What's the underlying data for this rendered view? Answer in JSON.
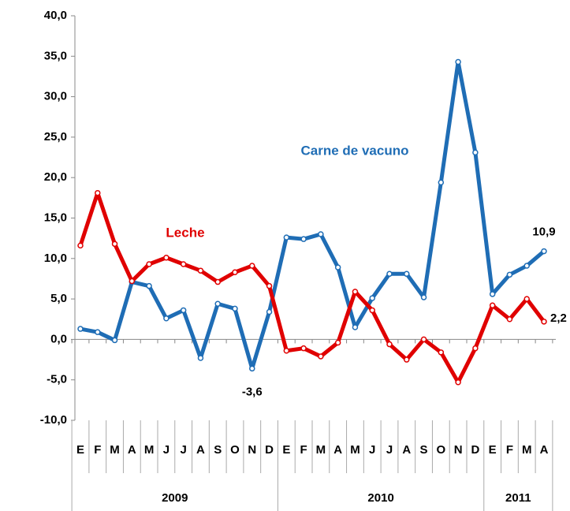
{
  "chart_data": {
    "type": "line",
    "categories": [
      "E",
      "F",
      "M",
      "A",
      "M",
      "J",
      "J",
      "A",
      "S",
      "O",
      "N",
      "D",
      "E",
      "F",
      "M",
      "A",
      "M",
      "J",
      "J",
      "A",
      "S",
      "O",
      "N",
      "D",
      "E",
      "F",
      "M",
      "A"
    ],
    "groups": [
      "2009",
      "2010",
      "2011"
    ],
    "ylim": [
      -10,
      40
    ],
    "yticks": [
      {
        "value": -10,
        "label": "-10,0"
      },
      {
        "value": -5,
        "label": "-5,0"
      },
      {
        "value": 0,
        "label": "0,0"
      },
      {
        "value": 5,
        "label": "5,0"
      },
      {
        "value": 10,
        "label": "10,0"
      },
      {
        "value": 15,
        "label": "15,0"
      },
      {
        "value": 20,
        "label": "20,0"
      },
      {
        "value": 25,
        "label": "25,0"
      },
      {
        "value": 30,
        "label": "30,0"
      },
      {
        "value": 35,
        "label": "35,0"
      },
      {
        "value": 40,
        "label": "40,0"
      }
    ],
    "grid": false,
    "series": [
      {
        "name": "Carne de vacuno",
        "color": "#1f6db5",
        "values": [
          1.3,
          0.9,
          -0.1,
          7.1,
          6.6,
          2.6,
          3.6,
          -2.3,
          4.4,
          3.8,
          -3.6,
          3.4,
          12.6,
          12.4,
          13.0,
          8.9,
          1.5,
          5.1,
          8.1,
          8.1,
          5.2,
          19.4,
          34.3,
          23.1,
          5.6,
          8.0,
          9.1,
          10.9
        ],
        "value_labels": [
          null,
          null,
          null,
          null,
          null,
          null,
          null,
          null,
          null,
          null,
          "-3,6",
          null,
          null,
          null,
          null,
          null,
          null,
          null,
          null,
          null,
          null,
          null,
          null,
          null,
          null,
          null,
          null,
          "10,9"
        ]
      },
      {
        "name": "Leche",
        "color": "#e00000",
        "values": [
          11.6,
          18.1,
          11.8,
          7.2,
          9.3,
          10.1,
          9.3,
          8.5,
          7.1,
          8.3,
          9.1,
          6.6,
          -1.4,
          -1.1,
          -2.1,
          -0.4,
          5.9,
          3.6,
          -0.6,
          -2.5,
          0.0,
          -1.6,
          -5.3,
          -1.1,
          4.2,
          2.5,
          5.0,
          2.2
        ],
        "value_labels": [
          null,
          null,
          null,
          null,
          null,
          null,
          null,
          null,
          null,
          null,
          null,
          null,
          null,
          null,
          null,
          null,
          null,
          null,
          null,
          null,
          null,
          null,
          null,
          null,
          null,
          null,
          null,
          "2,2"
        ]
      }
    ]
  }
}
